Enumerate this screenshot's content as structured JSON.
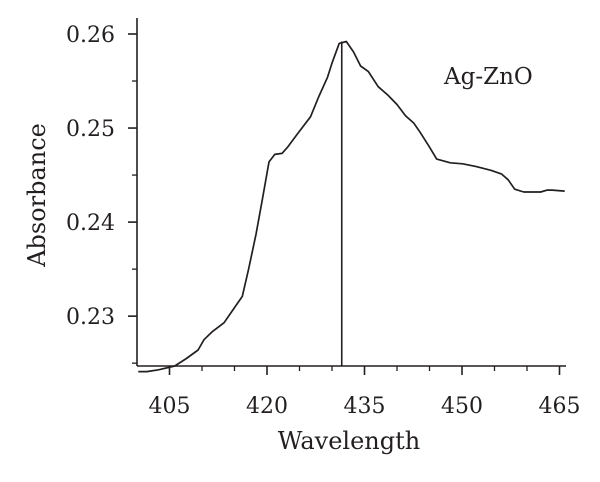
{
  "chart_data": {
    "type": "line",
    "title": "",
    "xlabel": "Wavelength",
    "ylabel": "Absorbance",
    "xlim": [
      400,
      466
    ],
    "ylim": [
      0.2247,
      0.2617
    ],
    "x_major_ticks": [
      405,
      420,
      435,
      450,
      465
    ],
    "x_minor_ticks": [
      410,
      415,
      425,
      430,
      440,
      445,
      455,
      460
    ],
    "y_major_ticks": [
      0.23,
      0.24,
      0.25,
      0.26
    ],
    "y_minor_ticks": [
      0.225,
      0.235,
      0.245,
      0.255
    ],
    "x_tick_labels": [
      "405",
      "420",
      "435",
      "450",
      "465"
    ],
    "y_tick_labels": [
      "0.23",
      "0.24",
      "0.25",
      "0.26"
    ],
    "grid": false,
    "legend_position": "top-right",
    "peak_marker_x": 431.5,
    "colors": {
      "line": "#231f20",
      "axis": "#231f20"
    },
    "series": [
      {
        "name": "Ag-ZnO",
        "x": [
          400.2,
          401.5,
          403.3,
          405.8,
          407.6,
          409.4,
          410.3,
          411.5,
          413.4,
          414.7,
          416.2,
          417.2,
          418.3,
          419.3,
          420.3,
          421.2,
          422.3,
          423.2,
          424.6,
          426.7,
          428.0,
          429.3,
          430.0,
          431.1,
          432.2,
          433.3,
          434.4,
          435.6,
          437.1,
          438.6,
          440.0,
          441.3,
          442.6,
          443.5,
          444.9,
          446.1,
          448.2,
          450.1,
          452.2,
          454.5,
          456.1,
          457.1,
          458.1,
          459.5,
          460.7,
          462.1,
          463.1,
          463.9,
          465.8
        ],
        "y": [
          0.2241,
          0.2241,
          0.2243,
          0.2247,
          0.2255,
          0.2264,
          0.2275,
          0.2283,
          0.2293,
          0.2306,
          0.2321,
          0.2351,
          0.2387,
          0.2425,
          0.2464,
          0.2472,
          0.2473,
          0.248,
          0.2493,
          0.2512,
          0.2534,
          0.2554,
          0.2569,
          0.259,
          0.2592,
          0.2581,
          0.2566,
          0.256,
          0.2544,
          0.2535,
          0.2525,
          0.2513,
          0.2505,
          0.2496,
          0.2481,
          0.2467,
          0.2463,
          0.2462,
          0.2459,
          0.2455,
          0.2451,
          0.2445,
          0.2435,
          0.2432,
          0.2432,
          0.2432,
          0.2434,
          0.2434,
          0.2433
        ]
      }
    ]
  }
}
